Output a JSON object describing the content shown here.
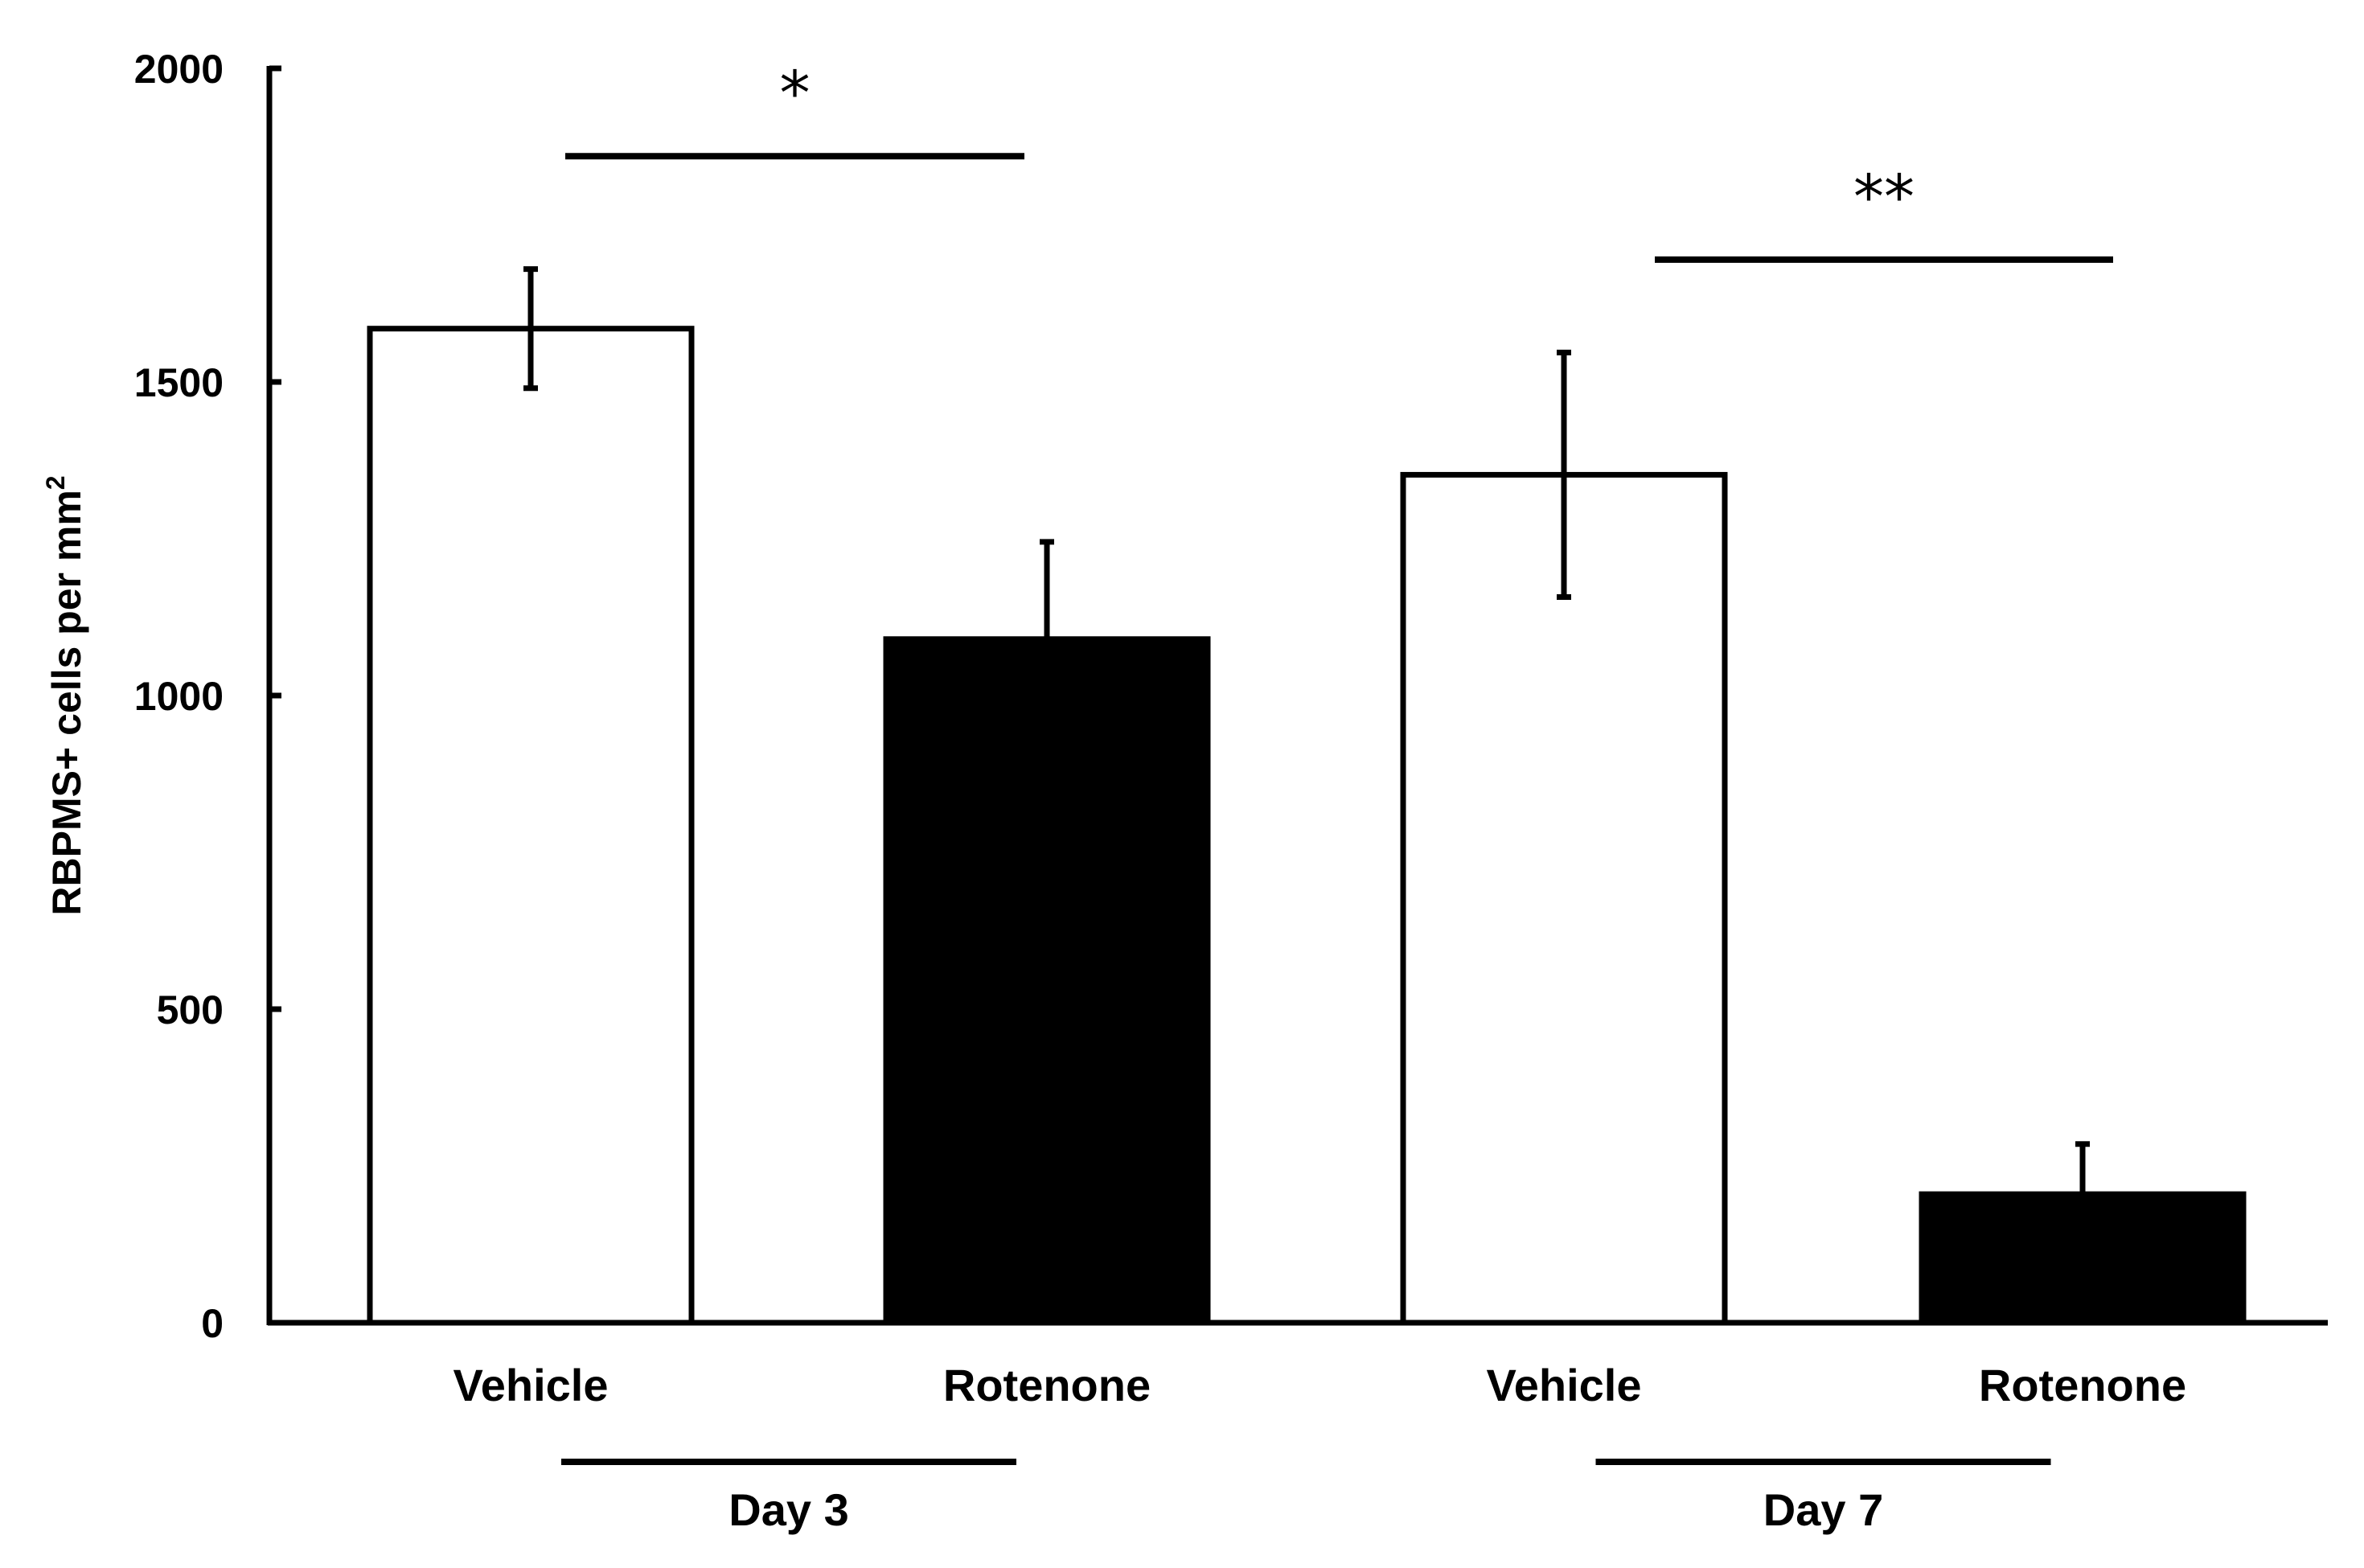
{
  "chart_data": {
    "type": "bar",
    "title": "",
    "xlabel": "",
    "ylabel": "RBPMS+ cells per mm",
    "ylabel_superscript": "2",
    "ylim": [
      0,
      2000
    ],
    "yticks": [
      "0",
      "500",
      "1000",
      "1500",
      "2000"
    ],
    "grid": false,
    "categories": [
      "Vehicle",
      "Rotenone",
      "Vehicle",
      "Rotenone"
    ],
    "values": [
      1585,
      1090,
      1352,
      205
    ],
    "errors": [
      95,
      155,
      195,
      80
    ],
    "bar_colors": [
      "#ffffff",
      "#000000",
      "#ffffff",
      "#000000"
    ],
    "groups": [
      {
        "label": "Day 3",
        "bars": [
          0,
          1
        ]
      },
      {
        "label": "Day 7",
        "bars": [
          2,
          3
        ]
      }
    ],
    "significance": [
      {
        "label": "*",
        "bars": [
          0,
          1
        ],
        "level": 1860
      },
      {
        "label": "**",
        "bars": [
          2,
          3
        ],
        "level": 1695
      }
    ]
  }
}
